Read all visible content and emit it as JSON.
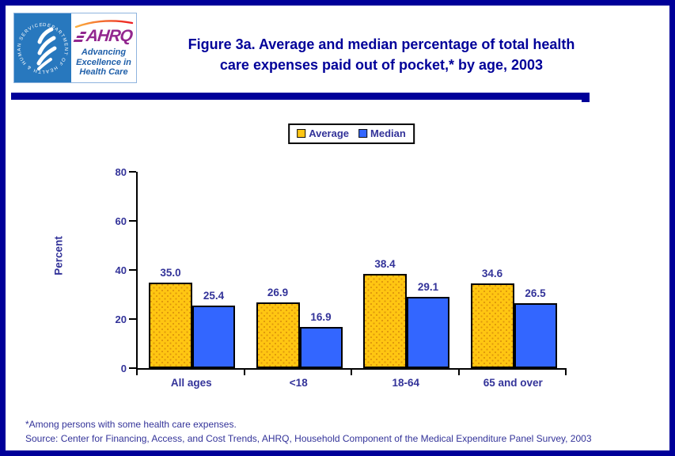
{
  "page": {
    "background": "#FFFFFF",
    "border_color": "#000099"
  },
  "header": {
    "hhs_logo": {
      "seal_text": "DEPARTMENT OF HEALTH & HUMAN SERVICES · USA",
      "seal_bg_color": "#2878BE"
    },
    "ahrq_logo": {
      "acronym": "AHRQ",
      "acronym_color": "#92278F",
      "tagline_line1": "Advancing",
      "tagline_line2": "Excellence in",
      "tagline_line3": "Health Care",
      "tagline_color": "#1F5FA9"
    },
    "title_line1": "Figure 3a. Average and median percentage of total health",
    "title_line2": "care expenses paid out of pocket,* by age, 2003",
    "title_color": "#000099"
  },
  "chart_data": {
    "type": "bar",
    "title": "Figure 3a. Average and median percentage of total health care expenses paid out of pocket,* by age, 2003",
    "categories": [
      "All ages",
      "<18",
      "18-64",
      "65 and over"
    ],
    "series": [
      {
        "name": "Average",
        "color": "#FFC612",
        "pattern": "dots",
        "values": [
          35.0,
          26.9,
          38.4,
          34.6
        ]
      },
      {
        "name": "Median",
        "color": "#3366FF",
        "pattern": "solid",
        "values": [
          25.4,
          16.9,
          29.1,
          26.5
        ]
      }
    ],
    "xlabel": "",
    "ylabel": "Percent",
    "ylim": [
      0,
      80
    ],
    "yticks": [
      0,
      20,
      40,
      60,
      80
    ],
    "value_label_decimals": 1,
    "legend_position": "top-center",
    "grid": false,
    "axis_color": "#000000",
    "label_color": "#333399"
  },
  "footnotes": {
    "note": "*Among persons with some health care expenses.",
    "source": "Source: Center for Financing, Access, and Cost Trends, AHRQ, Household Component of the Medical Expenditure Panel Survey, 2003"
  }
}
